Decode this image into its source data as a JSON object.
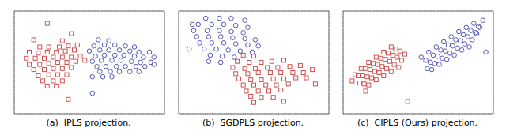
{
  "chart_data": [
    {
      "type": "scatter",
      "xlabel": "(a)  IPLS projection.",
      "xlim": [
        0,
        1
      ],
      "ylim": [
        0,
        1
      ],
      "xticks": [
        0.2,
        0.4,
        0.6,
        0.8
      ],
      "yticks": [
        0.2,
        0.4,
        0.6,
        0.8
      ],
      "grid": true,
      "tick_labels": false,
      "series": [
        {
          "color": "#d05050",
          "marker": "square",
          "points": [
            [
              0.22,
              0.88
            ],
            [
              0.38,
              0.78
            ],
            [
              0.13,
              0.72
            ],
            [
              0.32,
              0.71
            ],
            [
              0.17,
              0.65
            ],
            [
              0.23,
              0.65
            ],
            [
              0.3,
              0.65
            ],
            [
              0.36,
              0.66
            ],
            [
              0.42,
              0.67
            ],
            [
              0.1,
              0.6
            ],
            [
              0.16,
              0.59
            ],
            [
              0.22,
              0.6
            ],
            [
              0.28,
              0.6
            ],
            [
              0.34,
              0.61
            ],
            [
              0.4,
              0.62
            ],
            [
              0.08,
              0.54
            ],
            [
              0.14,
              0.54
            ],
            [
              0.2,
              0.54
            ],
            [
              0.26,
              0.55
            ],
            [
              0.32,
              0.55
            ],
            [
              0.38,
              0.55
            ],
            [
              0.44,
              0.56
            ],
            [
              0.1,
              0.48
            ],
            [
              0.17,
              0.48
            ],
            [
              0.23,
              0.49
            ],
            [
              0.29,
              0.5
            ],
            [
              0.35,
              0.5
            ],
            [
              0.41,
              0.51
            ],
            [
              0.47,
              0.52
            ],
            [
              0.13,
              0.43
            ],
            [
              0.2,
              0.43
            ],
            [
              0.26,
              0.44
            ],
            [
              0.32,
              0.44
            ],
            [
              0.38,
              0.45
            ],
            [
              0.16,
              0.37
            ],
            [
              0.23,
              0.38
            ],
            [
              0.29,
              0.38
            ],
            [
              0.35,
              0.38
            ],
            [
              0.19,
              0.32
            ],
            [
              0.26,
              0.32
            ],
            [
              0.32,
              0.32
            ],
            [
              0.22,
              0.27
            ],
            [
              0.28,
              0.27
            ],
            [
              0.36,
              0.14
            ]
          ]
        },
        {
          "color": "#5555bb",
          "marker": "circle",
          "points": [
            [
              0.56,
              0.72
            ],
            [
              0.63,
              0.71
            ],
            [
              0.53,
              0.66
            ],
            [
              0.6,
              0.67
            ],
            [
              0.67,
              0.67
            ],
            [
              0.74,
              0.66
            ],
            [
              0.8,
              0.65
            ],
            [
              0.5,
              0.61
            ],
            [
              0.57,
              0.62
            ],
            [
              0.63,
              0.62
            ],
            [
              0.7,
              0.62
            ],
            [
              0.77,
              0.61
            ],
            [
              0.83,
              0.6
            ],
            [
              0.9,
              0.6
            ],
            [
              0.54,
              0.56
            ],
            [
              0.6,
              0.57
            ],
            [
              0.67,
              0.57
            ],
            [
              0.73,
              0.57
            ],
            [
              0.8,
              0.56
            ],
            [
              0.86,
              0.55
            ],
            [
              0.93,
              0.55
            ],
            [
              0.52,
              0.51
            ],
            [
              0.58,
              0.52
            ],
            [
              0.65,
              0.52
            ],
            [
              0.71,
              0.52
            ],
            [
              0.78,
              0.51
            ],
            [
              0.84,
              0.5
            ],
            [
              0.91,
              0.5
            ],
            [
              0.55,
              0.46
            ],
            [
              0.61,
              0.46
            ],
            [
              0.68,
              0.46
            ],
            [
              0.74,
              0.46
            ],
            [
              0.81,
              0.46
            ],
            [
              0.87,
              0.46
            ],
            [
              0.57,
              0.41
            ],
            [
              0.64,
              0.41
            ],
            [
              0.7,
              0.41
            ],
            [
              0.77,
              0.41
            ],
            [
              0.83,
              0.41
            ],
            [
              0.52,
              0.36
            ],
            [
              0.59,
              0.36
            ],
            [
              0.65,
              0.36
            ],
            [
              0.52,
              0.2
            ],
            [
              0.93,
              0.48
            ]
          ]
        }
      ]
    },
    {
      "type": "scatter",
      "xlabel": "(b)  SGDPLS projection.",
      "xlim": [
        0,
        1
      ],
      "ylim": [
        0,
        1
      ],
      "xticks": [
        0.2,
        0.4,
        0.6,
        0.8
      ],
      "yticks": [
        0.2,
        0.4,
        0.6,
        0.8
      ],
      "grid": true,
      "tick_labels": false,
      "series": [
        {
          "color": "#d05050",
          "marker": "square",
          "points": [
            [
              0.43,
              0.57
            ],
            [
              0.5,
              0.56
            ],
            [
              0.39,
              0.51
            ],
            [
              0.47,
              0.5
            ],
            [
              0.55,
              0.5
            ],
            [
              0.62,
              0.51
            ],
            [
              0.7,
              0.52
            ],
            [
              0.36,
              0.45
            ],
            [
              0.44,
              0.44
            ],
            [
              0.51,
              0.44
            ],
            [
              0.59,
              0.45
            ],
            [
              0.66,
              0.45
            ],
            [
              0.74,
              0.46
            ],
            [
              0.81,
              0.47
            ],
            [
              0.38,
              0.39
            ],
            [
              0.46,
              0.39
            ],
            [
              0.53,
              0.4
            ],
            [
              0.61,
              0.4
            ],
            [
              0.68,
              0.4
            ],
            [
              0.76,
              0.4
            ],
            [
              0.83,
              0.4
            ],
            [
              0.4,
              0.34
            ],
            [
              0.48,
              0.33
            ],
            [
              0.55,
              0.33
            ],
            [
              0.63,
              0.34
            ],
            [
              0.7,
              0.34
            ],
            [
              0.78,
              0.35
            ],
            [
              0.85,
              0.35
            ],
            [
              0.43,
              0.28
            ],
            [
              0.5,
              0.28
            ],
            [
              0.58,
              0.28
            ],
            [
              0.65,
              0.28
            ],
            [
              0.73,
              0.29
            ],
            [
              0.45,
              0.22
            ],
            [
              0.53,
              0.22
            ],
            [
              0.6,
              0.22
            ],
            [
              0.68,
              0.23
            ],
            [
              0.48,
              0.17
            ],
            [
              0.55,
              0.16
            ],
            [
              0.63,
              0.16
            ],
            [
              0.5,
              0.11
            ],
            [
              0.89,
              0.43
            ],
            [
              0.91,
              0.29
            ],
            [
              0.7,
              0.12
            ]
          ]
        },
        {
          "color": "#5555bb",
          "marker": "circle",
          "points": [
            [
              0.18,
              0.93
            ],
            [
              0.27,
              0.93
            ],
            [
              0.35,
              0.93
            ],
            [
              0.44,
              0.91
            ],
            [
              0.13,
              0.87
            ],
            [
              0.22,
              0.87
            ],
            [
              0.3,
              0.87
            ],
            [
              0.38,
              0.86
            ],
            [
              0.46,
              0.84
            ],
            [
              0.1,
              0.81
            ],
            [
              0.19,
              0.81
            ],
            [
              0.27,
              0.81
            ],
            [
              0.35,
              0.8
            ],
            [
              0.43,
              0.79
            ],
            [
              0.12,
              0.75
            ],
            [
              0.2,
              0.75
            ],
            [
              0.28,
              0.75
            ],
            [
              0.36,
              0.74
            ],
            [
              0.44,
              0.73
            ],
            [
              0.51,
              0.72
            ],
            [
              0.14,
              0.69
            ],
            [
              0.22,
              0.69
            ],
            [
              0.3,
              0.69
            ],
            [
              0.38,
              0.68
            ],
            [
              0.46,
              0.67
            ],
            [
              0.53,
              0.66
            ],
            [
              0.17,
              0.63
            ],
            [
              0.25,
              0.63
            ],
            [
              0.33,
              0.62
            ],
            [
              0.41,
              0.61
            ],
            [
              0.49,
              0.6
            ],
            [
              0.21,
              0.57
            ],
            [
              0.29,
              0.56
            ],
            [
              0.37,
              0.55
            ],
            [
              0.2,
              0.51
            ],
            [
              0.28,
              0.5
            ],
            [
              0.07,
              0.63
            ],
            [
              0.09,
              0.87
            ]
          ]
        }
      ]
    },
    {
      "type": "scatter",
      "xlabel": "(c)  CIPLS (Ours) projection.",
      "xlim": [
        0,
        1
      ],
      "ylim": [
        0,
        1
      ],
      "xticks": [
        0.2,
        0.4,
        0.6,
        0.8
      ],
      "yticks": [
        0.2,
        0.4,
        0.6,
        0.8
      ],
      "grid": true,
      "tick_labels": false,
      "series": [
        {
          "color": "#d05050",
          "marker": "square",
          "points": [
            [
              0.08,
              0.38
            ],
            [
              0.06,
              0.32
            ],
            [
              0.12,
              0.44
            ],
            [
              0.1,
              0.37
            ],
            [
              0.08,
              0.3
            ],
            [
              0.17,
              0.5
            ],
            [
              0.15,
              0.44
            ],
            [
              0.13,
              0.37
            ],
            [
              0.11,
              0.3
            ],
            [
              0.22,
              0.55
            ],
            [
              0.2,
              0.49
            ],
            [
              0.18,
              0.43
            ],
            [
              0.16,
              0.36
            ],
            [
              0.14,
              0.29
            ],
            [
              0.27,
              0.6
            ],
            [
              0.25,
              0.54
            ],
            [
              0.23,
              0.48
            ],
            [
              0.21,
              0.41
            ],
            [
              0.19,
              0.35
            ],
            [
              0.17,
              0.28
            ],
            [
              0.32,
              0.65
            ],
            [
              0.3,
              0.59
            ],
            [
              0.28,
              0.53
            ],
            [
              0.26,
              0.46
            ],
            [
              0.24,
              0.4
            ],
            [
              0.22,
              0.33
            ],
            [
              0.35,
              0.63
            ],
            [
              0.33,
              0.57
            ],
            [
              0.31,
              0.51
            ],
            [
              0.29,
              0.44
            ],
            [
              0.27,
              0.37
            ],
            [
              0.38,
              0.61
            ],
            [
              0.36,
              0.55
            ],
            [
              0.34,
              0.48
            ],
            [
              0.32,
              0.41
            ],
            [
              0.41,
              0.58
            ],
            [
              0.39,
              0.52
            ],
            [
              0.37,
              0.45
            ],
            [
              0.15,
              0.22
            ],
            [
              0.43,
              0.12
            ]
          ]
        },
        {
          "color": "#5555bb",
          "marker": "circle",
          "points": [
            [
              0.52,
              0.55
            ],
            [
              0.55,
              0.52
            ],
            [
              0.57,
              0.6
            ],
            [
              0.6,
              0.57
            ],
            [
              0.58,
              0.5
            ],
            [
              0.56,
              0.44
            ],
            [
              0.62,
              0.65
            ],
            [
              0.65,
              0.62
            ],
            [
              0.63,
              0.56
            ],
            [
              0.61,
              0.49
            ],
            [
              0.59,
              0.43
            ],
            [
              0.67,
              0.7
            ],
            [
              0.7,
              0.67
            ],
            [
              0.68,
              0.61
            ],
            [
              0.66,
              0.54
            ],
            [
              0.64,
              0.48
            ],
            [
              0.72,
              0.75
            ],
            [
              0.75,
              0.72
            ],
            [
              0.73,
              0.66
            ],
            [
              0.71,
              0.59
            ],
            [
              0.69,
              0.53
            ],
            [
              0.77,
              0.8
            ],
            [
              0.8,
              0.77
            ],
            [
              0.78,
              0.71
            ],
            [
              0.76,
              0.64
            ],
            [
              0.74,
              0.57
            ],
            [
              0.82,
              0.84
            ],
            [
              0.85,
              0.81
            ],
            [
              0.83,
              0.75
            ],
            [
              0.81,
              0.68
            ],
            [
              0.79,
              0.62
            ],
            [
              0.87,
              0.88
            ],
            [
              0.9,
              0.85
            ],
            [
              0.88,
              0.79
            ],
            [
              0.86,
              0.72
            ],
            [
              0.84,
              0.65
            ],
            [
              0.93,
              0.91
            ],
            [
              0.91,
              0.84
            ],
            [
              0.89,
              0.78
            ],
            [
              0.95,
              0.6
            ]
          ]
        }
      ]
    }
  ]
}
